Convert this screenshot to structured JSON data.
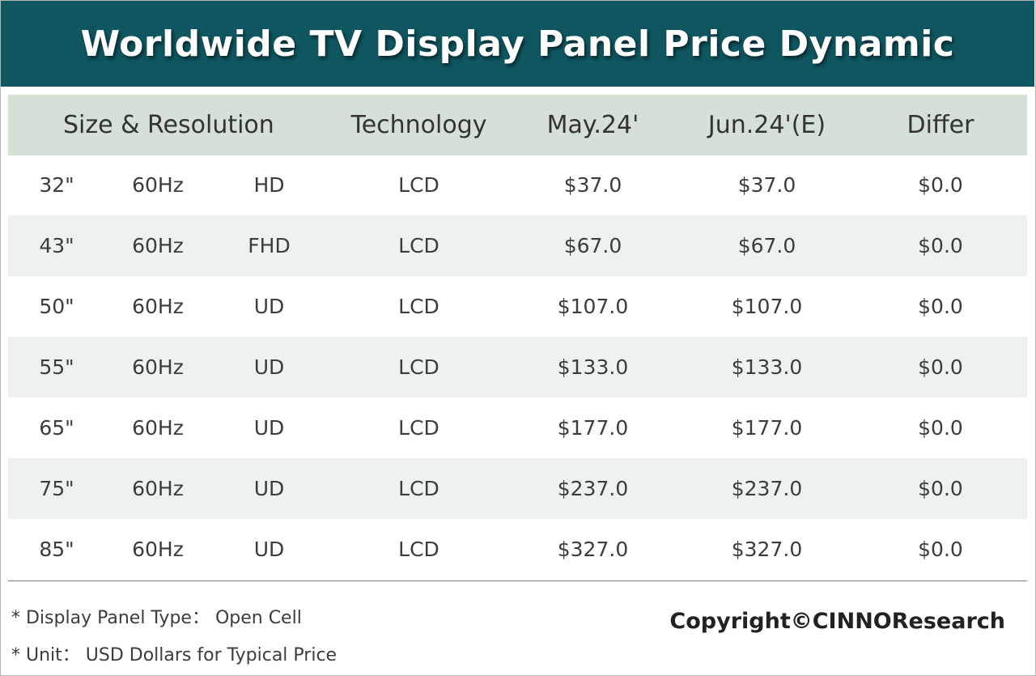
{
  "title": "Worldwide TV Display Panel Price Dynamic",
  "chart_data": {
    "type": "table",
    "title": "Worldwide TV Display Panel Price Dynamic",
    "columns": [
      "Size & Resolution",
      "Technology",
      "May.24'",
      "Jun.24'(E)",
      "Differ"
    ],
    "rows": [
      {
        "size": "32\"",
        "refresh": "60Hz",
        "resolution": "HD",
        "technology": "LCD",
        "may": "$37.0",
        "jun": "$37.0",
        "differ": "$0.0"
      },
      {
        "size": "43\"",
        "refresh": "60Hz",
        "resolution": "FHD",
        "technology": "LCD",
        "may": "$67.0",
        "jun": "$67.0",
        "differ": "$0.0"
      },
      {
        "size": "50\"",
        "refresh": "60Hz",
        "resolution": "UD",
        "technology": "LCD",
        "may": "$107.0",
        "jun": "$107.0",
        "differ": "$0.0"
      },
      {
        "size": "55\"",
        "refresh": "60Hz",
        "resolution": "UD",
        "technology": "LCD",
        "may": "$133.0",
        "jun": "$133.0",
        "differ": "$0.0"
      },
      {
        "size": "65\"",
        "refresh": "60Hz",
        "resolution": "UD",
        "technology": "LCD",
        "may": "$177.0",
        "jun": "$177.0",
        "differ": "$0.0"
      },
      {
        "size": "75\"",
        "refresh": "60Hz",
        "resolution": "UD",
        "technology": "LCD",
        "may": "$237.0",
        "jun": "$237.0",
        "differ": "$0.0"
      },
      {
        "size": "85\"",
        "refresh": "60Hz",
        "resolution": "UD",
        "technology": "LCD",
        "may": "$327.0",
        "jun": "$327.0",
        "differ": "$0.0"
      }
    ]
  },
  "notes": {
    "panel_type": "* Display Panel Type： Open Cell",
    "unit": "* Unit： USD Dollars for Typical Price"
  },
  "copyright": "Copyright©CINNOResearch",
  "colors": {
    "title_bg": "#0f5660",
    "header_bg": "#d5e0d6",
    "row_shade": "#eef2ee"
  }
}
